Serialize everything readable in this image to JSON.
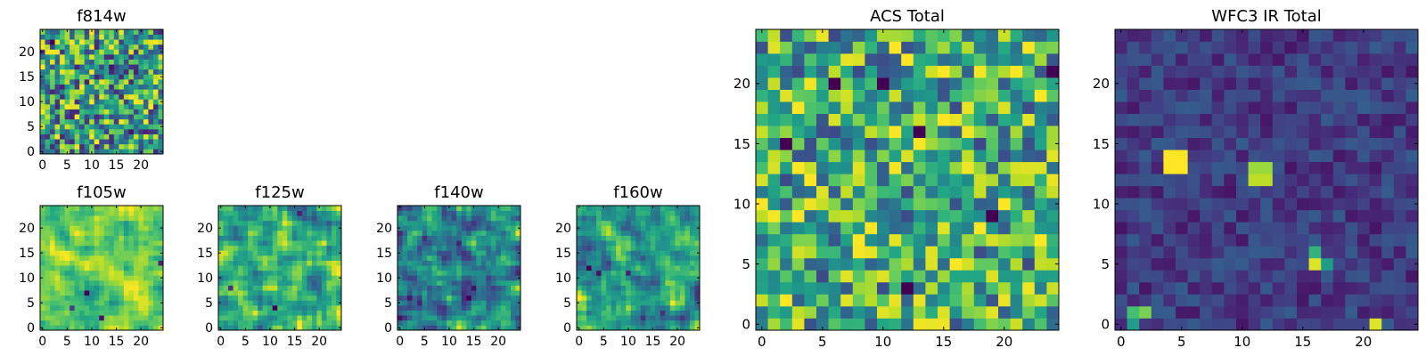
{
  "chart_data": [
    {
      "type": "heatmap",
      "title": "f814w",
      "grid_size": 25,
      "x_ticks": [
        0,
        5,
        10,
        15,
        20
      ],
      "y_ticks": [
        0,
        5,
        10,
        15,
        20
      ],
      "colormap": "viridis",
      "value_range": [
        0,
        1
      ],
      "seed": 11,
      "base": 0.55,
      "spread": 0.45,
      "smooth": 0,
      "spots": [
        {
          "x": 2,
          "y": 22,
          "v": 0.0
        },
        {
          "x": 14,
          "y": 17,
          "v": 0.05
        },
        {
          "x": 18,
          "y": 4,
          "v": 0.05
        },
        {
          "x": 9,
          "y": 14,
          "v": 0.1
        }
      ]
    },
    {
      "type": "heatmap",
      "title": "f105w",
      "grid_size": 25,
      "x_ticks": [
        0,
        5,
        10,
        15,
        20
      ],
      "y_ticks": [
        0,
        5,
        10,
        15,
        20
      ],
      "colormap": "viridis",
      "value_range": [
        0,
        1
      ],
      "seed": 21,
      "base": 0.75,
      "spread": 0.3,
      "smooth": 1,
      "spots": [
        {
          "x": 9,
          "y": 7,
          "v": 0.0
        },
        {
          "x": 12,
          "y": 2,
          "v": 0.05
        },
        {
          "x": 24,
          "y": 13,
          "v": 0.1
        },
        {
          "x": 6,
          "y": 4,
          "v": 0.2
        }
      ]
    },
    {
      "type": "heatmap",
      "title": "f125w",
      "grid_size": 25,
      "x_ticks": [
        0,
        5,
        10,
        15,
        20
      ],
      "y_ticks": [
        0,
        5,
        10,
        15,
        20
      ],
      "colormap": "viridis",
      "value_range": [
        0,
        1
      ],
      "seed": 31,
      "base": 0.65,
      "spread": 0.4,
      "smooth": 1,
      "spots": [
        {
          "x": 11,
          "y": 4,
          "v": 0.0
        },
        {
          "x": 16,
          "y": 23,
          "v": 0.1
        },
        {
          "x": 2,
          "y": 8,
          "v": 0.15
        }
      ]
    },
    {
      "type": "heatmap",
      "title": "f140w",
      "grid_size": 25,
      "x_ticks": [
        0,
        5,
        10,
        15,
        20
      ],
      "y_ticks": [
        0,
        5,
        10,
        15,
        20
      ],
      "colormap": "viridis",
      "value_range": [
        0,
        1
      ],
      "seed": 41,
      "base": 0.5,
      "spread": 0.45,
      "smooth": 1,
      "spots": [
        {
          "x": 14,
          "y": 6,
          "v": 0.0
        },
        {
          "x": 15,
          "y": 8,
          "v": 0.05
        },
        {
          "x": 4,
          "y": 5,
          "v": 0.1
        },
        {
          "x": 12,
          "y": 17,
          "v": 0.1
        }
      ]
    },
    {
      "type": "heatmap",
      "title": "f160w",
      "grid_size": 25,
      "x_ticks": [
        0,
        5,
        10,
        15,
        20
      ],
      "y_ticks": [
        0,
        5,
        10,
        15,
        20
      ],
      "colormap": "viridis",
      "value_range": [
        0,
        1
      ],
      "seed": 51,
      "base": 0.6,
      "spread": 0.45,
      "smooth": 1,
      "spots": [
        {
          "x": 2,
          "y": 12,
          "v": 0.0
        },
        {
          "x": 4,
          "y": 11,
          "v": 0.05
        },
        {
          "x": 10,
          "y": 11,
          "v": 0.1
        },
        {
          "x": 17,
          "y": 3,
          "v": 0.15
        }
      ]
    },
    {
      "type": "heatmap",
      "title": "ACS Total",
      "grid_size": 25,
      "x_ticks": [
        0,
        5,
        10,
        15,
        20
      ],
      "y_ticks": [
        0,
        5,
        10,
        15,
        20
      ],
      "colormap": "viridis",
      "value_range": [
        0,
        1
      ],
      "seed": 61,
      "base": 0.62,
      "spread": 0.4,
      "smooth": 0,
      "spots": [
        {
          "x": 13,
          "y": 16,
          "v": 0.0
        },
        {
          "x": 6,
          "y": 20,
          "v": 0.0
        },
        {
          "x": 10,
          "y": 20,
          "v": 0.0
        },
        {
          "x": 2,
          "y": 15,
          "v": 0.0
        },
        {
          "x": 19,
          "y": 9,
          "v": 0.0
        },
        {
          "x": 12,
          "y": 3,
          "v": 0.0
        },
        {
          "x": 24,
          "y": 21,
          "v": 0.0
        }
      ]
    },
    {
      "type": "heatmap",
      "title": "WFC3 IR Total",
      "grid_size": 25,
      "x_ticks": [
        0,
        5,
        10,
        15,
        20
      ],
      "y_ticks": [
        0,
        5,
        10,
        15,
        20
      ],
      "colormap": "viridis",
      "value_range": [
        0,
        1
      ],
      "seed": 71,
      "base": 0.18,
      "spread": 0.12,
      "smooth": 0,
      "spots": [
        {
          "x": 4,
          "y": 13,
          "v": 1.0
        },
        {
          "x": 5,
          "y": 13,
          "v": 1.0
        },
        {
          "x": 4,
          "y": 14,
          "v": 1.0
        },
        {
          "x": 5,
          "y": 14,
          "v": 1.0
        },
        {
          "x": 11,
          "y": 12,
          "v": 0.9
        },
        {
          "x": 12,
          "y": 12,
          "v": 0.9
        },
        {
          "x": 11,
          "y": 13,
          "v": 0.85
        },
        {
          "x": 12,
          "y": 13,
          "v": 0.85
        },
        {
          "x": 16,
          "y": 5,
          "v": 0.95
        },
        {
          "x": 16,
          "y": 6,
          "v": 0.65
        },
        {
          "x": 17,
          "y": 5,
          "v": 0.55
        },
        {
          "x": 21,
          "y": 0,
          "v": 0.95
        },
        {
          "x": 1,
          "y": 1,
          "v": 0.7
        },
        {
          "x": 2,
          "y": 1,
          "v": 0.8
        },
        {
          "x": 1,
          "y": 0,
          "v": 0.55
        }
      ]
    }
  ]
}
